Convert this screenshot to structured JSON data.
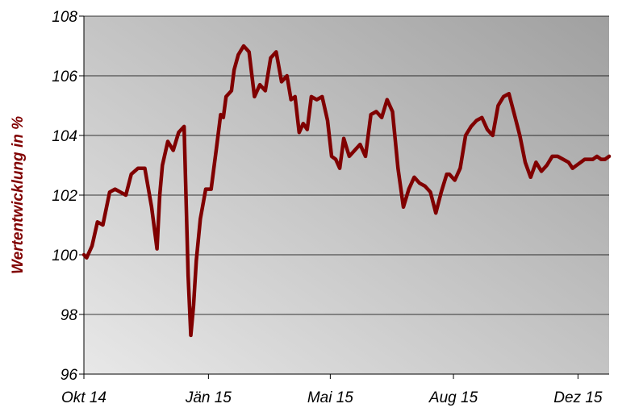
{
  "chart_data": {
    "type": "line",
    "title": "",
    "xlabel": "",
    "ylabel": "Wertentwicklung in %",
    "ylim": [
      96,
      108
    ],
    "yticks": [
      "96",
      "98",
      "100",
      "102",
      "104",
      "106",
      "108"
    ],
    "xticks": [
      {
        "label": "Okt 14",
        "date": "2014-10-01"
      },
      {
        "label": "Jän 15",
        "date": "2015-01-01"
      },
      {
        "label": "Mai 15",
        "date": "2015-04-01"
      },
      {
        "label": "Aug 15",
        "date": "2015-07-01"
      },
      {
        "label": "Dez 15",
        "date": "2015-10-01"
      }
    ],
    "grid": "horizontal",
    "legend": "none",
    "colors": {
      "line": "#800000",
      "plot_bg_light": "#e6e6e6",
      "plot_bg_dark": "#9e9e9e",
      "gridline": "#000000"
    },
    "series": [
      {
        "x": [
          "2014-10-01",
          "2014-10-03",
          "2014-10-07",
          "2014-10-11",
          "2014-10-15",
          "2014-10-20",
          "2014-10-24",
          "2014-10-28",
          "2014-11-01",
          "2014-11-05",
          "2014-11-10",
          "2014-11-15",
          "2014-11-20",
          "2014-11-24",
          "2014-11-26",
          "2014-11-28",
          "2014-12-02",
          "2014-12-06",
          "2014-12-10",
          "2014-12-14",
          "2014-12-17",
          "2014-12-19",
          "2014-12-21",
          "2014-12-23",
          "2014-12-26",
          "2014-12-30",
          "2015-01-03",
          "2015-01-07",
          "2015-01-10",
          "2015-01-12",
          "2015-01-14",
          "2015-01-16",
          "2015-01-18",
          "2015-01-20",
          "2015-01-23",
          "2015-01-27",
          "2015-01-31",
          "2015-02-04",
          "2015-02-08",
          "2015-02-12",
          "2015-02-16",
          "2015-02-20",
          "2015-02-24",
          "2015-02-28",
          "2015-03-03",
          "2015-03-06",
          "2015-03-09",
          "2015-03-12",
          "2015-03-15",
          "2015-03-18",
          "2015-03-22",
          "2015-03-26",
          "2015-03-30",
          "2015-04-02",
          "2015-04-05",
          "2015-04-08",
          "2015-04-11",
          "2015-04-15",
          "2015-04-19",
          "2015-04-23",
          "2015-04-27",
          "2015-05-01",
          "2015-05-05",
          "2015-05-09",
          "2015-05-13",
          "2015-05-17",
          "2015-05-21",
          "2015-05-25",
          "2015-05-29",
          "2015-06-02",
          "2015-06-06",
          "2015-06-10",
          "2015-06-14",
          "2015-06-18",
          "2015-06-22",
          "2015-06-24",
          "2015-06-26",
          "2015-06-28",
          "2015-07-02",
          "2015-07-06",
          "2015-07-10",
          "2015-07-14",
          "2015-07-18",
          "2015-07-22",
          "2015-07-26",
          "2015-07-30",
          "2015-08-03",
          "2015-08-07",
          "2015-08-11",
          "2015-08-15",
          "2015-08-19",
          "2015-08-23",
          "2015-08-27",
          "2015-08-31",
          "2015-09-04",
          "2015-09-08",
          "2015-09-12",
          "2015-09-16",
          "2015-09-20",
          "2015-09-24",
          "2015-09-27",
          "2015-09-30",
          "2015-10-03",
          "2015-10-06",
          "2015-10-09",
          "2015-10-12",
          "2015-10-15",
          "2015-10-18",
          "2015-10-21",
          "2015-10-24"
        ],
        "values": [
          100.0,
          99.9,
          100.3,
          101.1,
          101.0,
          102.1,
          102.2,
          102.1,
          102.0,
          102.7,
          102.9,
          102.9,
          101.6,
          100.2,
          102.0,
          103.0,
          103.8,
          103.5,
          104.1,
          104.3,
          99.3,
          97.3,
          98.3,
          99.8,
          101.2,
          102.2,
          102.2,
          103.6,
          104.7,
          104.6,
          105.3,
          105.4,
          105.5,
          106.2,
          106.7,
          107.0,
          106.8,
          105.3,
          105.7,
          105.5,
          106.6,
          106.8,
          105.8,
          106.0,
          105.2,
          105.3,
          104.1,
          104.4,
          104.2,
          105.3,
          105.2,
          105.3,
          104.5,
          103.3,
          103.2,
          102.9,
          103.9,
          103.3,
          103.5,
          103.7,
          103.3,
          104.7,
          104.8,
          104.6,
          105.2,
          104.8,
          102.9,
          101.6,
          102.2,
          102.6,
          102.4,
          102.3,
          102.1,
          101.4,
          102.1,
          102.4,
          102.7,
          102.7,
          102.5,
          102.9,
          104.0,
          104.3,
          104.5,
          104.6,
          104.2,
          104.0,
          105.0,
          105.3,
          105.4,
          104.7,
          104.0,
          103.1,
          102.6,
          103.1,
          102.8,
          103.0,
          103.3,
          103.3,
          103.2,
          103.1,
          102.9,
          103.0,
          103.1,
          103.2,
          103.2,
          103.2,
          103.3,
          103.2,
          103.2,
          103.3
        ]
      }
    ]
  }
}
